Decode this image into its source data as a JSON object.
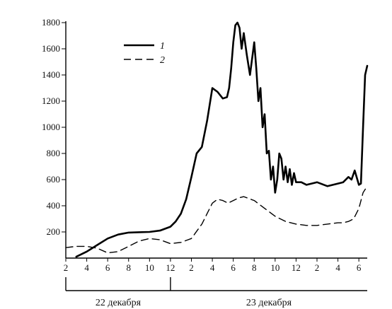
{
  "chart_data": {
    "type": "line",
    "title": "",
    "xlabel": "",
    "ylabel": "",
    "ylim": [
      0,
      1800
    ],
    "yticks": [
      200,
      400,
      600,
      800,
      1000,
      1200,
      1400,
      1600,
      1800
    ],
    "xlim": [
      2,
      30.8
    ],
    "xtick_positions": [
      2,
      4,
      6,
      8,
      10,
      12,
      14,
      16,
      18,
      20,
      22,
      24,
      26,
      28,
      30
    ],
    "xtick_labels": [
      "2",
      "4",
      "6",
      "8",
      "10",
      "12",
      "2",
      "4",
      "6",
      "8",
      "10",
      "12",
      "2",
      "4",
      "6"
    ],
    "date_labels": [
      "22 декабря",
      "23 декабря"
    ],
    "date_divider_at": 12,
    "legend_placement": "top-left",
    "grid": false,
    "series": [
      {
        "name": "1",
        "style": "solid",
        "color": "#000000",
        "x": [
          3,
          4,
          5,
          6,
          7,
          8,
          9,
          10,
          11,
          12,
          12.5,
          13,
          13.5,
          14,
          14.5,
          15,
          15.5,
          16,
          16.5,
          17,
          17.4,
          17.6,
          17.8,
          18,
          18.2,
          18.4,
          18.6,
          18.8,
          19,
          19.3,
          19.6,
          20,
          20.2,
          20.4,
          20.6,
          20.8,
          21,
          21.2,
          21.4,
          21.6,
          21.8,
          22,
          22.2,
          22.4,
          22.6,
          22.8,
          23,
          23.2,
          23.4,
          23.6,
          23.8,
          24,
          24.5,
          25,
          26,
          27,
          28,
          28.5,
          29,
          29.3,
          29.6,
          30,
          30.2,
          30.4,
          30.6,
          30.8
        ],
        "values": [
          10,
          50,
          100,
          150,
          180,
          195,
          198,
          200,
          210,
          240,
          280,
          340,
          450,
          620,
          800,
          850,
          1050,
          1300,
          1270,
          1220,
          1230,
          1300,
          1450,
          1650,
          1780,
          1800,
          1760,
          1600,
          1720,
          1550,
          1400,
          1650,
          1450,
          1200,
          1300,
          1000,
          1100,
          800,
          820,
          600,
          700,
          500,
          600,
          800,
          760,
          600,
          700,
          580,
          680,
          560,
          650,
          580,
          580,
          560,
          580,
          550,
          570,
          580,
          620,
          600,
          670,
          560,
          570,
          1000,
          1400,
          1470
        ],
        "values_tail_note": ""
      },
      {
        "name": "2",
        "style": "dashed",
        "color": "#000000",
        "x": [
          2,
          3,
          4,
          5,
          6,
          7,
          8,
          9,
          10,
          11,
          12,
          13,
          14,
          15,
          15.5,
          16,
          16.5,
          17,
          17.5,
          18,
          18.5,
          19,
          20,
          21,
          22,
          23,
          24,
          25,
          26,
          27,
          28,
          28.5,
          29,
          29.5,
          30,
          30.4,
          30.8
        ],
        "values": [
          80,
          90,
          90,
          75,
          40,
          50,
          90,
          130,
          150,
          140,
          110,
          120,
          150,
          260,
          340,
          420,
          450,
          440,
          420,
          440,
          460,
          470,
          440,
          380,
          320,
          280,
          260,
          250,
          250,
          260,
          270,
          270,
          280,
          300,
          380,
          500,
          550
        ]
      }
    ]
  },
  "legend": {
    "items": [
      {
        "label": "1",
        "style": "solid"
      },
      {
        "label": "2",
        "style": "dashed"
      }
    ]
  }
}
